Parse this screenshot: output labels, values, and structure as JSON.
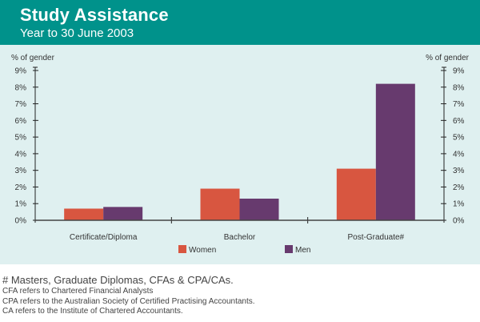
{
  "header": {
    "title": "Study Assistance",
    "subtitle": "Year to 30 June 2003"
  },
  "chart_data": {
    "type": "bar",
    "title": "Study Assistance",
    "subtitle": "Year to 30 June 2003",
    "ylabel_left": "% of gender",
    "ylabel_right": "% of gender",
    "xlabel": "",
    "categories": [
      "Certificate/Diploma",
      "Bachelor",
      "Post-Graduate#"
    ],
    "series": [
      {
        "name": "Women",
        "color": "#d85640",
        "values": [
          0.7,
          1.9,
          3.1
        ]
      },
      {
        "name": "Men",
        "color": "#673a6e",
        "values": [
          0.8,
          1.3,
          8.2
        ]
      }
    ],
    "ylim": [
      0,
      9
    ],
    "yticks": [
      "0%",
      "1%",
      "2%",
      "3%",
      "4%",
      "5%",
      "6%",
      "7%",
      "8%",
      "9%"
    ],
    "grid": false,
    "legend_position": "bottom-center"
  },
  "notes": {
    "main": "# Masters, Graduate Diplomas, CFAs & CPA/CAs.",
    "lines": [
      "CFA refers to Chartered Financial Analysts",
      "CPA refers to the Australian Society of Certified Practising Accountants.",
      "CA refers to the Institute of Chartered Accountants."
    ]
  }
}
